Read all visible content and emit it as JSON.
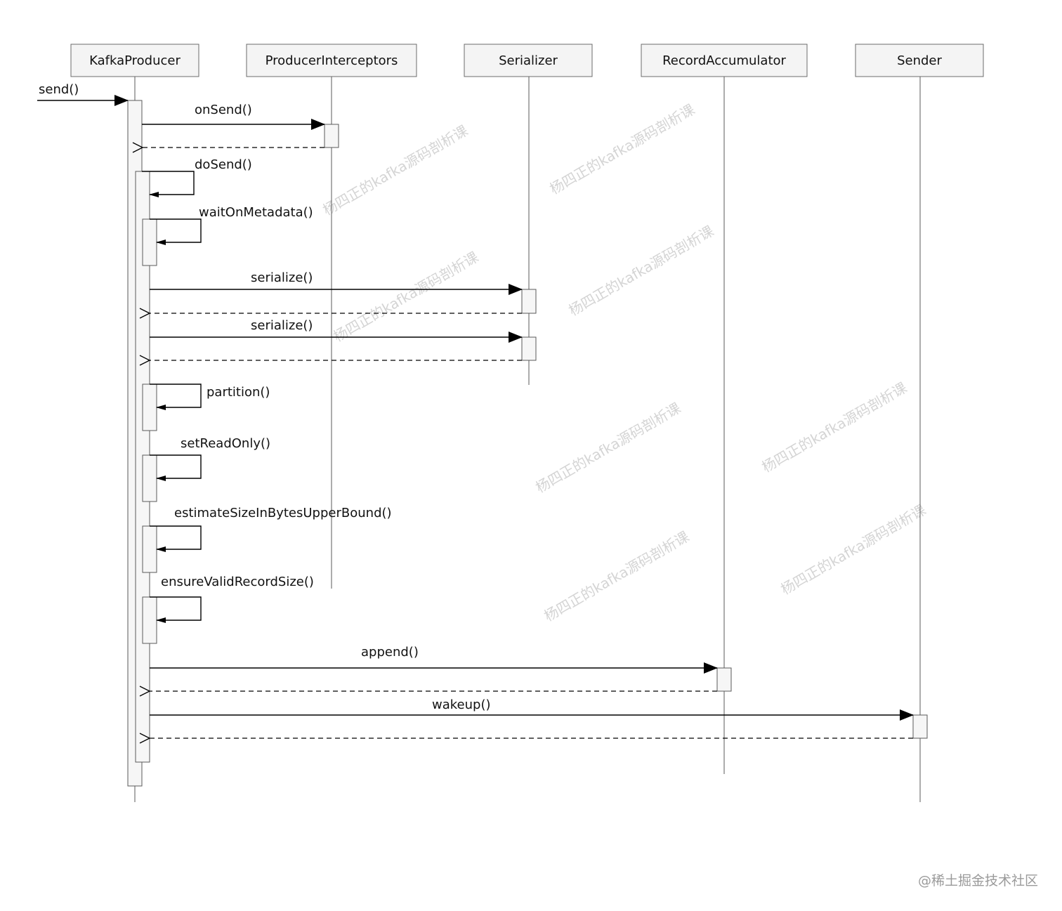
{
  "participants": [
    {
      "id": "kp",
      "label": "KafkaProducer"
    },
    {
      "id": "pi",
      "label": "ProducerInterceptors"
    },
    {
      "id": "ser",
      "label": "Serializer"
    },
    {
      "id": "ra",
      "label": "RecordAccumulator"
    },
    {
      "id": "snd",
      "label": "Sender"
    }
  ],
  "messages": [
    {
      "label": "send()",
      "from": "external",
      "to": "kp"
    },
    {
      "label": "onSend()",
      "from": "kp",
      "to": "pi",
      "return": true
    },
    {
      "label": "doSend()",
      "from": "kp",
      "to": "kp"
    },
    {
      "label": "waitOnMetadata()",
      "from": "kp",
      "to": "kp"
    },
    {
      "label": "serialize()",
      "from": "kp",
      "to": "ser",
      "return": true
    },
    {
      "label": "serialize()",
      "from": "kp",
      "to": "ser",
      "return": true
    },
    {
      "label": "partition()",
      "from": "kp",
      "to": "kp"
    },
    {
      "label": "setReadOnly()",
      "from": "kp",
      "to": "kp"
    },
    {
      "label": "estimateSizeInBytesUpperBound()",
      "from": "kp",
      "to": "kp"
    },
    {
      "label": "ensureValidRecordSize()",
      "from": "kp",
      "to": "kp"
    },
    {
      "label": "append()",
      "from": "kp",
      "to": "ra",
      "return": true
    },
    {
      "label": "wakeup()",
      "from": "kp",
      "to": "snd",
      "return": true
    }
  ],
  "watermark_text": "杨四正的kafka源码剖析课",
  "site_watermark": "@稀土掘金技术社区"
}
